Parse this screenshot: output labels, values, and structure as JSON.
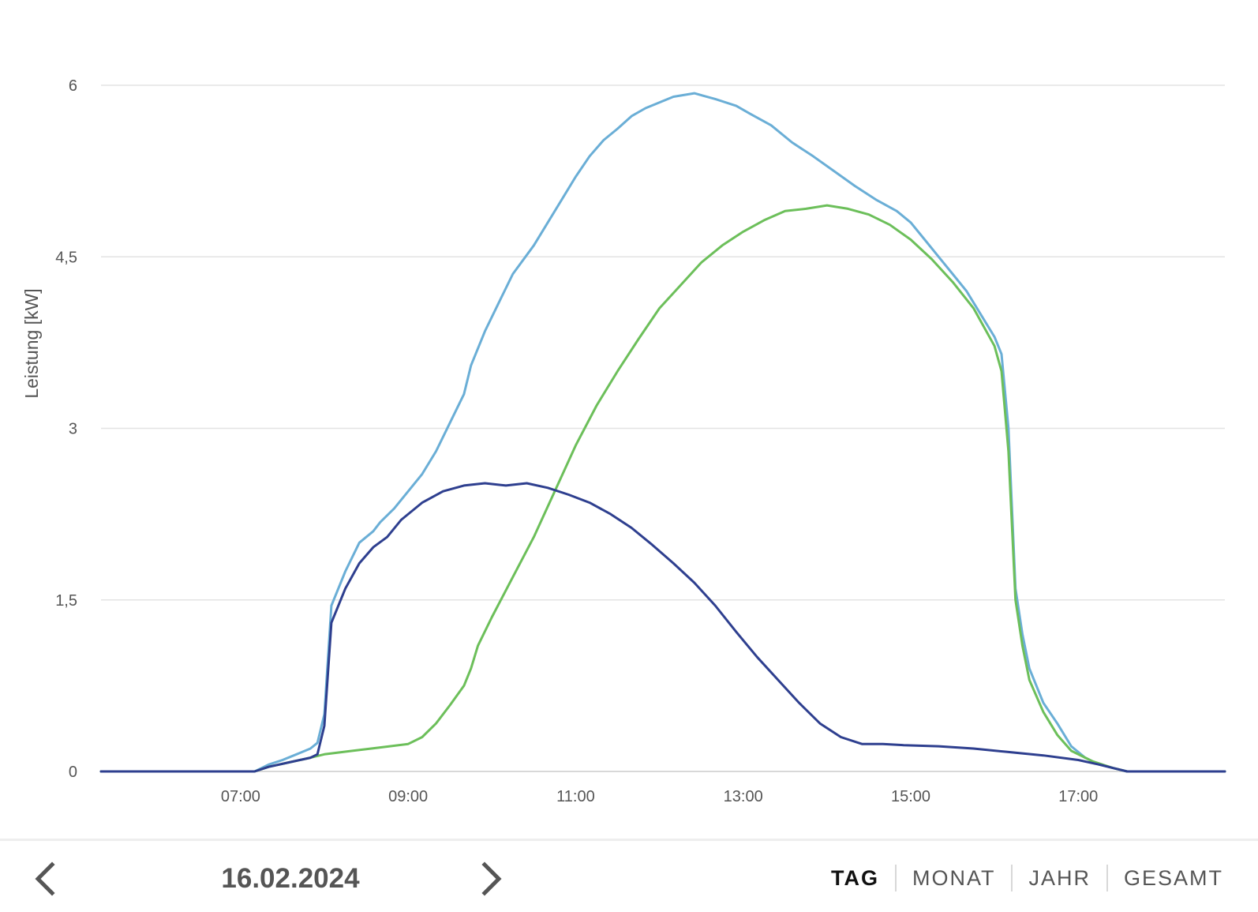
{
  "chart_data": {
    "type": "line",
    "title": "",
    "xlabel": "",
    "ylabel": "Leistung [kW]",
    "xlim": [
      "05:20",
      "18:45"
    ],
    "ylim": [
      0,
      6
    ],
    "x_ticks": [
      "07:00",
      "09:00",
      "11:00",
      "13:00",
      "15:00",
      "17:00"
    ],
    "y_ticks": [
      {
        "value": 0,
        "label": "0"
      },
      {
        "value": 1.5,
        "label": "1,5"
      },
      {
        "value": 3,
        "label": "3"
      },
      {
        "value": 4.5,
        "label": "4,5"
      },
      {
        "value": 6,
        "label": "6"
      }
    ],
    "grid": true,
    "legend": "none",
    "series": [
      {
        "color": "#6aaed6",
        "points": [
          [
            "05:20",
            0
          ],
          [
            "07:10",
            0
          ],
          [
            "07:15",
            0.03
          ],
          [
            "07:20",
            0.06
          ],
          [
            "07:30",
            0.1
          ],
          [
            "07:40",
            0.15
          ],
          [
            "07:50",
            0.2
          ],
          [
            "07:55",
            0.25
          ],
          [
            "08:00",
            0.5
          ],
          [
            "08:05",
            1.45
          ],
          [
            "08:15",
            1.75
          ],
          [
            "08:25",
            2.0
          ],
          [
            "08:35",
            2.1
          ],
          [
            "08:40",
            2.18
          ],
          [
            "08:50",
            2.3
          ],
          [
            "09:00",
            2.45
          ],
          [
            "09:10",
            2.6
          ],
          [
            "09:20",
            2.8
          ],
          [
            "09:30",
            3.05
          ],
          [
            "09:40",
            3.3
          ],
          [
            "09:45",
            3.55
          ],
          [
            "09:55",
            3.85
          ],
          [
            "10:05",
            4.1
          ],
          [
            "10:15",
            4.35
          ],
          [
            "10:30",
            4.6
          ],
          [
            "10:40",
            4.8
          ],
          [
            "10:50",
            5.0
          ],
          [
            "11:00",
            5.2
          ],
          [
            "11:10",
            5.38
          ],
          [
            "11:20",
            5.52
          ],
          [
            "11:30",
            5.62
          ],
          [
            "11:40",
            5.73
          ],
          [
            "11:50",
            5.8
          ],
          [
            "12:00",
            5.85
          ],
          [
            "12:10",
            5.9
          ],
          [
            "12:25",
            5.93
          ],
          [
            "12:40",
            5.88
          ],
          [
            "12:55",
            5.82
          ],
          [
            "13:05",
            5.75
          ],
          [
            "13:20",
            5.65
          ],
          [
            "13:35",
            5.5
          ],
          [
            "13:50",
            5.38
          ],
          [
            "14:05",
            5.25
          ],
          [
            "14:20",
            5.12
          ],
          [
            "14:35",
            5.0
          ],
          [
            "14:50",
            4.9
          ],
          [
            "15:00",
            4.8
          ],
          [
            "15:10",
            4.65
          ],
          [
            "15:20",
            4.5
          ],
          [
            "15:30",
            4.35
          ],
          [
            "15:40",
            4.2
          ],
          [
            "15:50",
            4.0
          ],
          [
            "16:00",
            3.8
          ],
          [
            "16:05",
            3.65
          ],
          [
            "16:10",
            3.0
          ],
          [
            "16:15",
            1.6
          ],
          [
            "16:20",
            1.2
          ],
          [
            "16:25",
            0.9
          ],
          [
            "16:35",
            0.6
          ],
          [
            "16:45",
            0.42
          ],
          [
            "16:55",
            0.22
          ],
          [
            "17:05",
            0.12
          ],
          [
            "17:15",
            0.06
          ],
          [
            "17:25",
            0.03
          ],
          [
            "17:35",
            0
          ],
          [
            "18:45",
            0
          ]
        ]
      },
      {
        "color": "#6cbf5a",
        "points": [
          [
            "05:20",
            0
          ],
          [
            "07:10",
            0
          ],
          [
            "07:20",
            0.04
          ],
          [
            "07:35",
            0.08
          ],
          [
            "07:50",
            0.12
          ],
          [
            "08:00",
            0.15
          ],
          [
            "08:20",
            0.18
          ],
          [
            "08:40",
            0.21
          ],
          [
            "09:00",
            0.24
          ],
          [
            "09:10",
            0.3
          ],
          [
            "09:20",
            0.42
          ],
          [
            "09:30",
            0.58
          ],
          [
            "09:40",
            0.75
          ],
          [
            "09:45",
            0.9
          ],
          [
            "09:50",
            1.1
          ],
          [
            "10:00",
            1.35
          ],
          [
            "10:15",
            1.7
          ],
          [
            "10:30",
            2.05
          ],
          [
            "10:45",
            2.45
          ],
          [
            "11:00",
            2.85
          ],
          [
            "11:15",
            3.2
          ],
          [
            "11:30",
            3.5
          ],
          [
            "11:45",
            3.78
          ],
          [
            "12:00",
            4.05
          ],
          [
            "12:15",
            4.25
          ],
          [
            "12:30",
            4.45
          ],
          [
            "12:45",
            4.6
          ],
          [
            "13:00",
            4.72
          ],
          [
            "13:15",
            4.82
          ],
          [
            "13:30",
            4.9
          ],
          [
            "13:45",
            4.92
          ],
          [
            "14:00",
            4.95
          ],
          [
            "14:15",
            4.92
          ],
          [
            "14:30",
            4.87
          ],
          [
            "14:45",
            4.78
          ],
          [
            "15:00",
            4.65
          ],
          [
            "15:15",
            4.48
          ],
          [
            "15:30",
            4.28
          ],
          [
            "15:45",
            4.05
          ],
          [
            "16:00",
            3.72
          ],
          [
            "16:05",
            3.5
          ],
          [
            "16:10",
            2.8
          ],
          [
            "16:15",
            1.5
          ],
          [
            "16:20",
            1.1
          ],
          [
            "16:25",
            0.8
          ],
          [
            "16:35",
            0.52
          ],
          [
            "16:45",
            0.32
          ],
          [
            "16:55",
            0.18
          ],
          [
            "17:10",
            0.09
          ],
          [
            "17:25",
            0.03
          ],
          [
            "17:35",
            0
          ],
          [
            "18:45",
            0
          ]
        ]
      },
      {
        "color": "#2e3f8f",
        "points": [
          [
            "05:20",
            0
          ],
          [
            "07:10",
            0
          ],
          [
            "07:20",
            0.04
          ],
          [
            "07:35",
            0.08
          ],
          [
            "07:50",
            0.12
          ],
          [
            "07:55",
            0.15
          ],
          [
            "08:00",
            0.4
          ],
          [
            "08:05",
            1.3
          ],
          [
            "08:15",
            1.6
          ],
          [
            "08:25",
            1.82
          ],
          [
            "08:35",
            1.96
          ],
          [
            "08:45",
            2.05
          ],
          [
            "08:55",
            2.2
          ],
          [
            "09:10",
            2.35
          ],
          [
            "09:25",
            2.45
          ],
          [
            "09:40",
            2.5
          ],
          [
            "09:55",
            2.52
          ],
          [
            "10:10",
            2.5
          ],
          [
            "10:25",
            2.52
          ],
          [
            "10:40",
            2.48
          ],
          [
            "10:55",
            2.42
          ],
          [
            "11:10",
            2.35
          ],
          [
            "11:25",
            2.25
          ],
          [
            "11:40",
            2.13
          ],
          [
            "11:55",
            1.98
          ],
          [
            "12:10",
            1.82
          ],
          [
            "12:25",
            1.65
          ],
          [
            "12:40",
            1.45
          ],
          [
            "12:55",
            1.22
          ],
          [
            "13:10",
            1.0
          ],
          [
            "13:25",
            0.8
          ],
          [
            "13:40",
            0.6
          ],
          [
            "13:55",
            0.42
          ],
          [
            "14:10",
            0.3
          ],
          [
            "14:25",
            0.24
          ],
          [
            "14:40",
            0.24
          ],
          [
            "14:55",
            0.23
          ],
          [
            "15:20",
            0.22
          ],
          [
            "15:45",
            0.2
          ],
          [
            "16:10",
            0.17
          ],
          [
            "16:35",
            0.14
          ],
          [
            "17:00",
            0.1
          ],
          [
            "17:15",
            0.06
          ],
          [
            "17:25",
            0.03
          ],
          [
            "17:35",
            0
          ],
          [
            "18:45",
            0
          ]
        ]
      }
    ]
  },
  "footer": {
    "date": "16.02.2024",
    "prev_icon": "chevron-left-icon",
    "next_icon": "chevron-right-icon",
    "tabs": [
      {
        "label": "TAG",
        "active": true
      },
      {
        "label": "MONAT",
        "active": false
      },
      {
        "label": "JAHR",
        "active": false
      },
      {
        "label": "GESAMT",
        "active": false
      }
    ]
  },
  "colors": {
    "grid": "#e3e3e3",
    "axis": "#cccccc",
    "text": "#555555"
  }
}
